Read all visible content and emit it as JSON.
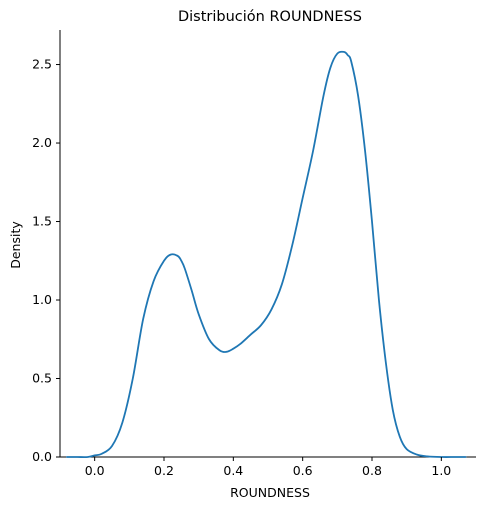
{
  "chart_data": {
    "type": "line",
    "title": "Distribución ROUNDNESS",
    "xlabel": "ROUNDNESS",
    "ylabel": "Density",
    "xlim": [
      -0.1,
      1.1
    ],
    "ylim": [
      0,
      2.72
    ],
    "x_ticks": [
      "0.0",
      "0.2",
      "0.4",
      "0.6",
      "0.8",
      "1.0"
    ],
    "y_ticks": [
      "0.0",
      "0.5",
      "1.0",
      "1.5",
      "2.0",
      "2.5"
    ],
    "grid": false,
    "legend": "none",
    "series": [
      {
        "color": "#1f77b4",
        "x": [
          -0.08,
          -0.05,
          -0.02,
          0.0,
          0.02,
          0.05,
          0.08,
          0.11,
          0.14,
          0.17,
          0.2,
          0.22,
          0.24,
          0.25,
          0.26,
          0.28,
          0.3,
          0.33,
          0.36,
          0.38,
          0.4,
          0.42,
          0.45,
          0.48,
          0.51,
          0.54,
          0.57,
          0.6,
          0.63,
          0.66,
          0.68,
          0.7,
          0.72,
          0.73,
          0.74,
          0.76,
          0.78,
          0.8,
          0.82,
          0.84,
          0.86,
          0.88,
          0.9,
          0.93,
          0.96,
          1.0,
          1.04,
          1.07
        ],
        "y": [
          0.0,
          0.0,
          0.0,
          0.01,
          0.02,
          0.07,
          0.22,
          0.5,
          0.88,
          1.12,
          1.25,
          1.29,
          1.28,
          1.25,
          1.2,
          1.06,
          0.91,
          0.75,
          0.68,
          0.67,
          0.69,
          0.72,
          0.78,
          0.84,
          0.94,
          1.1,
          1.35,
          1.65,
          1.95,
          2.3,
          2.48,
          2.57,
          2.58,
          2.56,
          2.52,
          2.3,
          1.95,
          1.5,
          1.0,
          0.6,
          0.3,
          0.13,
          0.05,
          0.015,
          0.004,
          0.0,
          0.0,
          0.0
        ]
      }
    ]
  }
}
